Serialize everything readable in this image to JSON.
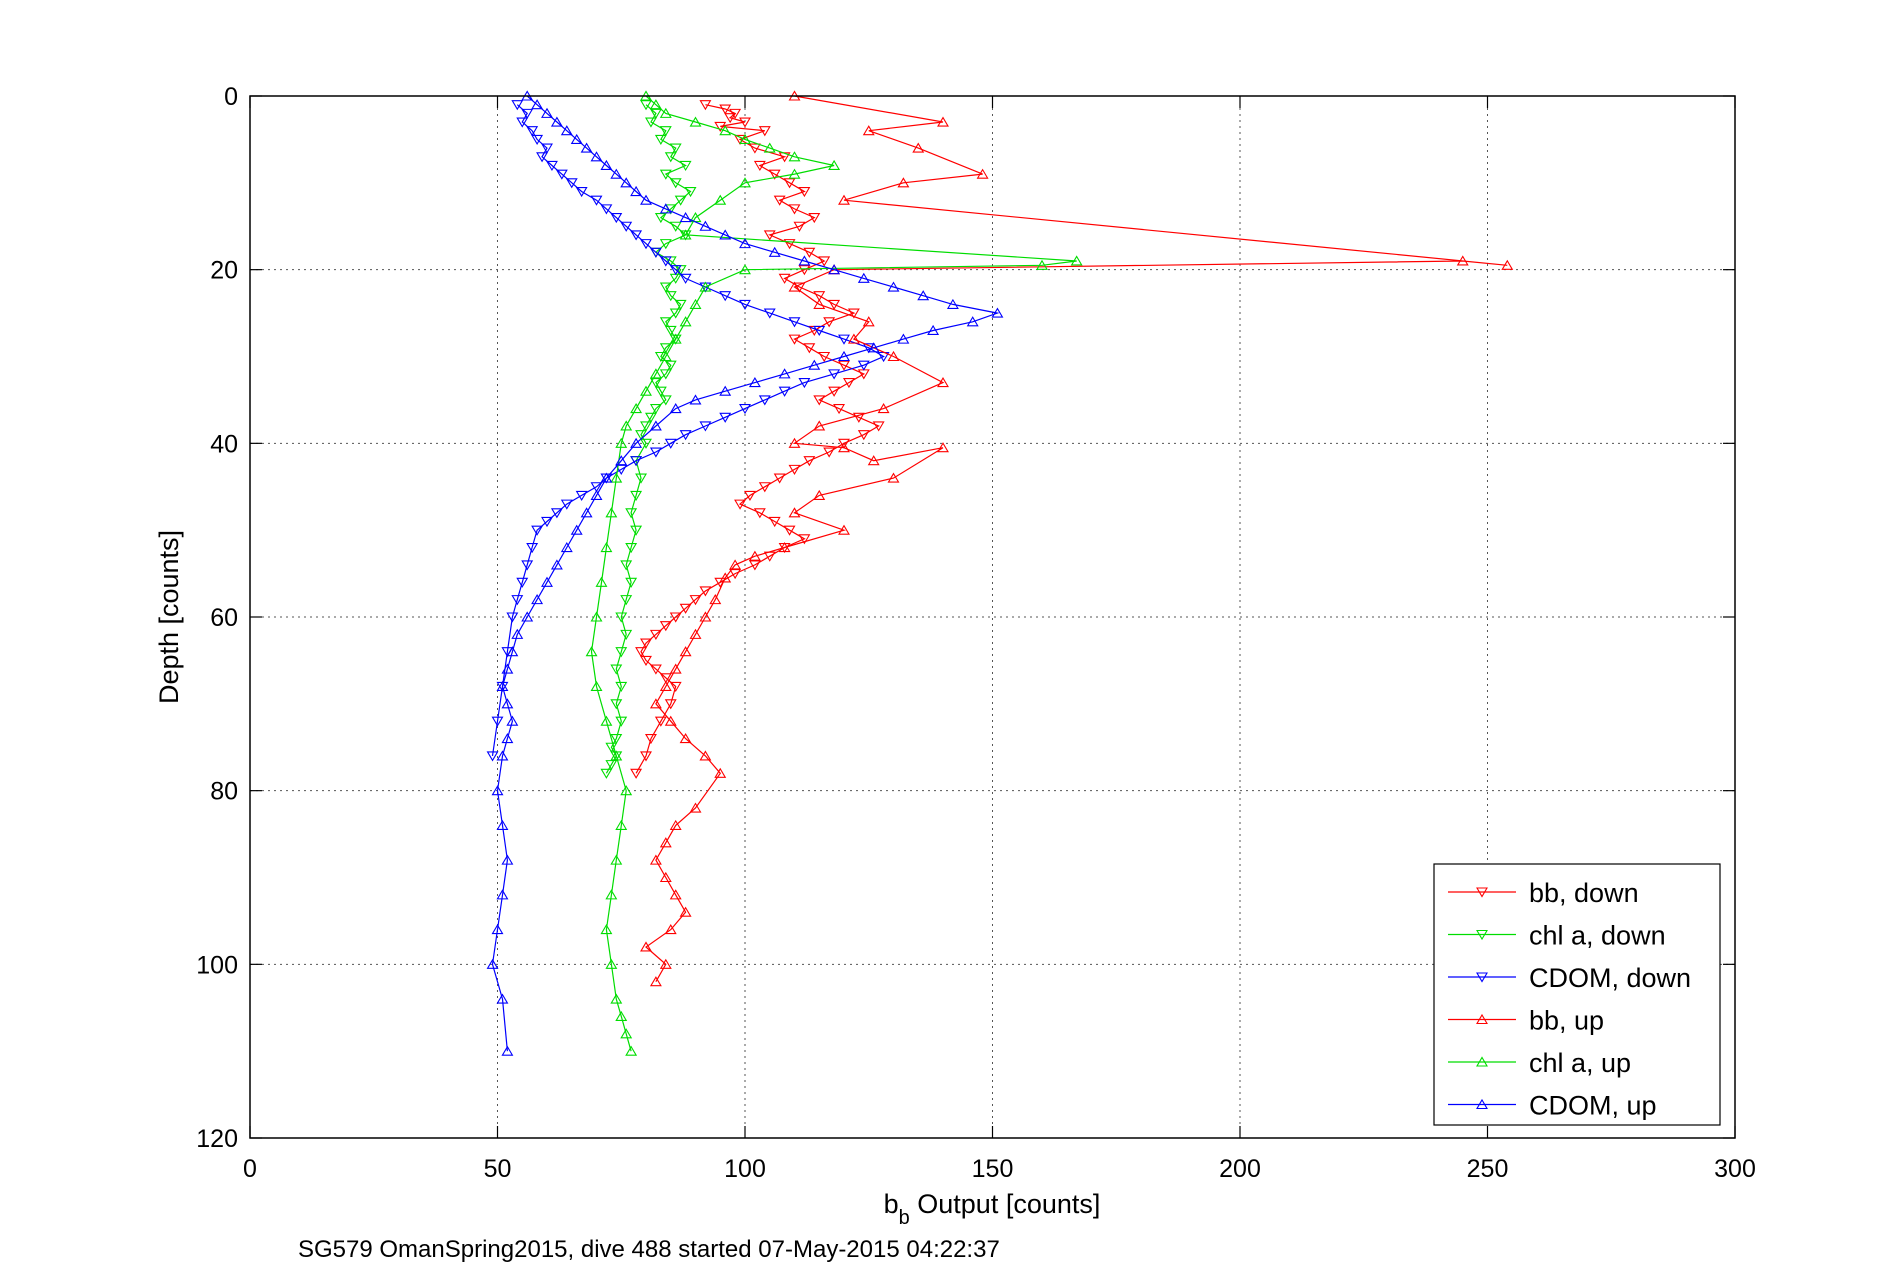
{
  "chart_data": {
    "type": "line",
    "xlabel_main": "b",
    "xlabel_sub": "b",
    "xlabel_rest": " Output [counts]",
    "ylabel": "Depth [counts]",
    "caption": "SG579 OmanSpring2015, dive 488 started 07-May-2015 04:22:37",
    "xlim": [
      0,
      300
    ],
    "ylim": [
      0,
      120
    ],
    "y_reversed": true,
    "grid": true,
    "legend_position": "bottom-right",
    "xticks": [
      "0",
      "50",
      "100",
      "150",
      "200",
      "250",
      "300"
    ],
    "yticks": [
      "0",
      "20",
      "40",
      "60",
      "80",
      "100",
      "120"
    ],
    "series": [
      {
        "name": "bb, down",
        "color": "#ff0000",
        "marker": "triangle-down",
        "x": [
          92,
          96,
          98,
          97,
          100,
          95,
          104,
          99,
          102,
          108,
          103,
          106,
          109,
          112,
          107,
          110,
          114,
          111,
          105,
          109,
          113,
          116,
          112,
          108,
          111,
          115,
          118,
          122,
          117,
          114,
          110,
          113,
          116,
          120,
          124,
          121,
          118,
          115,
          119,
          123,
          127,
          124,
          120,
          117,
          113,
          110,
          107,
          104,
          101,
          99,
          103,
          106,
          109,
          112,
          108,
          105,
          102,
          98,
          95,
          92,
          90,
          88,
          86,
          84,
          82,
          80,
          79,
          80,
          82,
          84,
          86,
          85,
          83,
          81,
          80,
          78
        ],
        "y": [
          1,
          1.5,
          2,
          2.5,
          3,
          3.5,
          4,
          5,
          6,
          7,
          8,
          9,
          10,
          11,
          12,
          13,
          14,
          15,
          16,
          17,
          18,
          19,
          20,
          21,
          22,
          23,
          24,
          25,
          26,
          27,
          28,
          29,
          30,
          31,
          32,
          33,
          34,
          35,
          36,
          37,
          38,
          39,
          40,
          41,
          42,
          43,
          44,
          45,
          46,
          47,
          48,
          49,
          50,
          51,
          52,
          53,
          54,
          55,
          56,
          57,
          58,
          59,
          60,
          61,
          62,
          63,
          64,
          65,
          66,
          67,
          68,
          70,
          72,
          74,
          76,
          78
        ]
      },
      {
        "name": "chl a, down",
        "color": "#00dd00",
        "marker": "triangle-down",
        "x": [
          80,
          82,
          81,
          84,
          83,
          86,
          85,
          88,
          84,
          86,
          89,
          87,
          85,
          83,
          86,
          88,
          84,
          82,
          85,
          87,
          86,
          84,
          85,
          87,
          86,
          84,
          85,
          86,
          84,
          83,
          85,
          84,
          82,
          83,
          84,
          82,
          81,
          80,
          79,
          80,
          78,
          79,
          78,
          77,
          78,
          77,
          76,
          77,
          76,
          75,
          76,
          75,
          74,
          75,
          74,
          75,
          74,
          73,
          74,
          73,
          72
        ],
        "y": [
          1,
          2,
          3,
          4,
          5,
          6,
          7,
          8,
          9,
          10,
          11,
          12,
          13,
          14,
          15,
          16,
          17,
          18,
          19,
          20,
          21,
          22,
          23,
          24,
          25,
          26,
          27,
          28,
          29,
          30,
          31,
          32,
          33,
          34,
          35,
          36,
          37,
          38,
          39,
          40,
          42,
          44,
          46,
          48,
          50,
          52,
          54,
          56,
          58,
          60,
          62,
          64,
          66,
          68,
          70,
          72,
          74,
          75,
          76,
          77,
          78
        ]
      },
      {
        "name": "CDOM, down",
        "color": "#0000ff",
        "marker": "triangle-down",
        "x": [
          54,
          56,
          55,
          57,
          58,
          60,
          59,
          61,
          63,
          65,
          67,
          70,
          72,
          74,
          76,
          78,
          80,
          82,
          84,
          86,
          88,
          92,
          96,
          100,
          105,
          110,
          115,
          120,
          125,
          128,
          124,
          118,
          112,
          108,
          104,
          100,
          96,
          92,
          88,
          85,
          82,
          78,
          75,
          72,
          70,
          67,
          64,
          62,
          60,
          58,
          57,
          56,
          55,
          54,
          53,
          52,
          51,
          50,
          49
        ],
        "y": [
          1,
          2,
          3,
          4,
          5,
          6,
          7,
          8,
          9,
          10,
          11,
          12,
          13,
          14,
          15,
          16,
          17,
          18,
          19,
          20,
          21,
          22,
          23,
          24,
          25,
          26,
          27,
          28,
          29,
          30,
          31,
          32,
          33,
          34,
          35,
          36,
          37,
          38,
          39,
          40,
          41,
          42,
          43,
          44,
          45,
          46,
          47,
          48,
          49,
          50,
          52,
          54,
          56,
          58,
          60,
          64,
          68,
          72,
          76
        ]
      },
      {
        "name": "bb, up",
        "color": "#ff0000",
        "marker": "triangle-up",
        "x": [
          110,
          140,
          125,
          135,
          148,
          132,
          120,
          254,
          245,
          118,
          110,
          115,
          125,
          122,
          130,
          140,
          128,
          115,
          110,
          120,
          126,
          140,
          130,
          115,
          110,
          120,
          108,
          102,
          98,
          96,
          94,
          92,
          90,
          88,
          86,
          84,
          82,
          85,
          88,
          92,
          95,
          90,
          86,
          84,
          82,
          84,
          86,
          88,
          85,
          80,
          84,
          82
        ],
        "y": [
          0,
          3,
          4,
          6,
          9,
          10,
          12,
          19.5,
          19,
          20,
          22,
          24,
          26,
          28,
          30,
          33,
          36,
          38,
          40,
          40.5,
          42,
          40.5,
          44,
          46,
          48,
          50,
          52,
          53,
          54,
          55.5,
          58,
          60,
          62,
          64,
          66,
          68,
          70,
          72,
          74,
          76,
          78,
          82,
          84,
          86,
          88,
          90,
          92,
          94,
          96,
          98,
          100,
          102
        ]
      },
      {
        "name": "chl a, up",
        "color": "#00dd00",
        "marker": "triangle-up",
        "x": [
          80,
          82,
          84,
          90,
          96,
          100,
          105,
          110,
          118,
          110,
          100,
          95,
          90,
          88,
          167,
          160,
          100,
          92,
          90,
          88,
          86,
          84,
          82,
          80,
          78,
          76,
          75,
          74,
          73,
          72,
          71,
          70,
          69,
          70,
          72,
          74,
          76,
          75,
          74,
          73,
          72,
          73,
          74,
          75,
          76,
          77
        ],
        "y": [
          0,
          1,
          2,
          3,
          4,
          5,
          6,
          7,
          8,
          9,
          10,
          12,
          14,
          16,
          19,
          19.5,
          20,
          22,
          24,
          26,
          28,
          30,
          32,
          34,
          36,
          38,
          40,
          44,
          48,
          52,
          56,
          60,
          64,
          68,
          72,
          76,
          80,
          84,
          88,
          92,
          96,
          100,
          104,
          106,
          108,
          110
        ]
      },
      {
        "name": "CDOM, up",
        "color": "#0000ff",
        "marker": "triangle-up",
        "x": [
          56,
          58,
          60,
          62,
          64,
          66,
          68,
          70,
          72,
          74,
          76,
          78,
          80,
          84,
          88,
          92,
          96,
          100,
          106,
          112,
          118,
          124,
          130,
          136,
          142,
          151,
          146,
          138,
          132,
          126,
          120,
          114,
          108,
          102,
          96,
          90,
          86,
          82,
          78,
          75,
          72,
          70,
          68,
          66,
          64,
          62,
          60,
          58,
          56,
          54,
          53,
          52,
          51,
          52,
          53,
          52,
          51,
          50,
          51,
          52,
          51,
          50,
          49,
          51,
          52
        ],
        "y": [
          0,
          1,
          2,
          3,
          4,
          5,
          6,
          7,
          8,
          9,
          10,
          11,
          12,
          13,
          14,
          15,
          16,
          17,
          18,
          19,
          20,
          21,
          22,
          23,
          24,
          25,
          26,
          27,
          28,
          29,
          30,
          31,
          32,
          33,
          34,
          35,
          36,
          38,
          40,
          42,
          44,
          46,
          48,
          50,
          52,
          54,
          56,
          58,
          60,
          62,
          64,
          66,
          68,
          70,
          72,
          74,
          76,
          80,
          84,
          88,
          92,
          96,
          100,
          104,
          110
        ]
      }
    ]
  }
}
